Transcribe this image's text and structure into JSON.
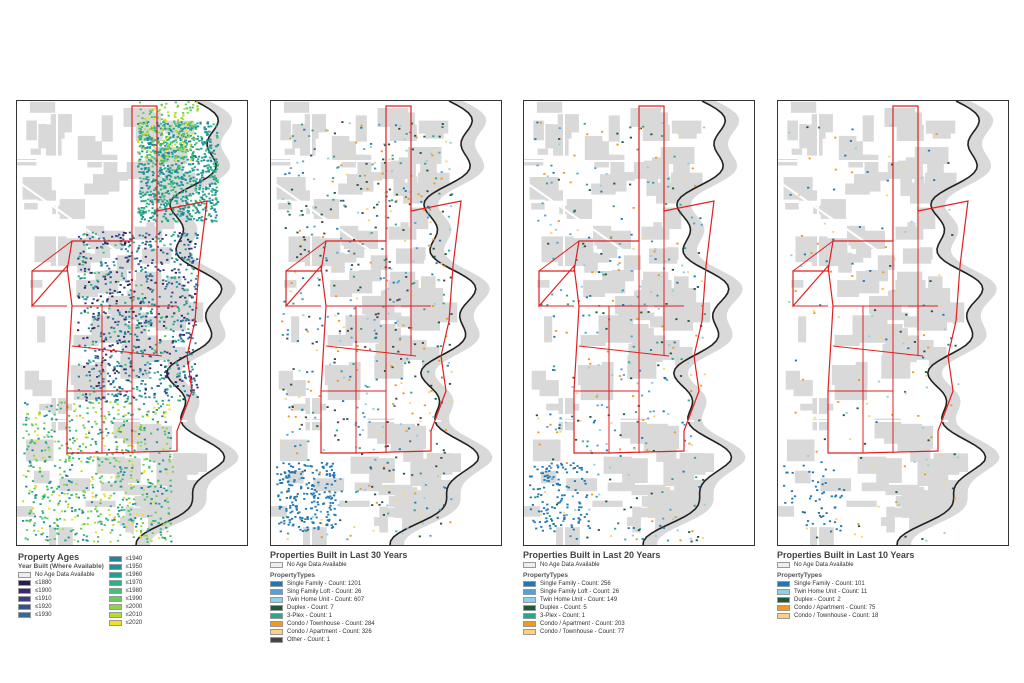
{
  "colors": {
    "land": "#d9d9d9",
    "river": "#ffffff",
    "boundary": "#e02020",
    "outline": "#222222"
  },
  "maps": [
    {
      "name": "property-ages",
      "legend_title": "Property Ages",
      "legend_subtitle": "Year Built (Where Available)",
      "columns": [
        [
          {
            "label": "No Age Data Available",
            "color": "#eeeeee"
          },
          {
            "label": "≤1880",
            "color": "#2d1a4e"
          },
          {
            "label": "≤1900",
            "color": "#3b2470"
          },
          {
            "label": "≤1910",
            "color": "#3a3b8a"
          },
          {
            "label": "≤1920",
            "color": "#33509a"
          },
          {
            "label": "≤1930",
            "color": "#2f6aa0"
          }
        ],
        [
          {
            "label": "≤1940",
            "color": "#257f9f"
          },
          {
            "label": "≤1950",
            "color": "#1f8f9a"
          },
          {
            "label": "≤1960",
            "color": "#1ea192"
          },
          {
            "label": "≤1970",
            "color": "#27b386"
          },
          {
            "label": "≤1980",
            "color": "#42c173"
          },
          {
            "label": "≤1990",
            "color": "#67cc5b"
          },
          {
            "label": "≤2000",
            "color": "#8ed546"
          },
          {
            "label": "≤2010",
            "color": "#b6dc2f"
          },
          {
            "label": "≤2020",
            "color": "#f0e020"
          }
        ]
      ]
    },
    {
      "name": "last-30-years",
      "legend_title": "Properties Built in Last 30 Years",
      "no_data_label": "No Age Data Available",
      "types_label": "PropertyTypes",
      "items": [
        {
          "label": "Single Family - Count: 1201",
          "color": "#1f78b4"
        },
        {
          "label": "Sing Family Loft - Count: 26",
          "color": "#4fa3d8"
        },
        {
          "label": "Twin Home Unit - Count: 607",
          "color": "#8fd0e8"
        },
        {
          "label": "Duplex - Count: 7",
          "color": "#1e5a3a"
        },
        {
          "label": "3-Plex - Count: 1",
          "color": "#2ca58d"
        },
        {
          "label": "Condo / Townhouse - Count: 284",
          "color": "#f29a1f"
        },
        {
          "label": "Condo / Apartment - Count: 326",
          "color": "#fdd27a"
        },
        {
          "label": "Other - Count: 1",
          "color": "#444444"
        }
      ]
    },
    {
      "name": "last-20-years",
      "legend_title": "Properties Built in Last 20 Years",
      "no_data_label": "No Age Data Available",
      "types_label": "PropertyTypes",
      "items": [
        {
          "label": "Single Family - Count: 256",
          "color": "#1f78b4"
        },
        {
          "label": "Single Family Loft - Count: 26",
          "color": "#4fa3d8"
        },
        {
          "label": "Twin Home Unit - Count: 149",
          "color": "#8fd0e8"
        },
        {
          "label": "Duplex - Count: 5",
          "color": "#1e5a3a"
        },
        {
          "label": "3-Plex - Count: 1",
          "color": "#2ca58d"
        },
        {
          "label": "Condo / Apartment - Count: 203",
          "color": "#f29a1f"
        },
        {
          "label": "Condo / Townhouse - Count: 77",
          "color": "#fdd27a"
        }
      ]
    },
    {
      "name": "last-10-years",
      "legend_title": "Properties Built in Last 10 Years",
      "no_data_label": "No Age Data Available",
      "types_label": "PropertyTypes",
      "items": [
        {
          "label": "Single Family - Count: 101",
          "color": "#1f78b4"
        },
        {
          "label": "Twin Home Unit - Count: 11",
          "color": "#8fd0e8"
        },
        {
          "label": "Duplex - Count: 2",
          "color": "#1e5a3a"
        },
        {
          "label": "Condo / Apartment - Count: 75",
          "color": "#f29a1f"
        },
        {
          "label": "Condo / Townhouse - Count: 18",
          "color": "#fdd27a"
        }
      ]
    }
  ]
}
